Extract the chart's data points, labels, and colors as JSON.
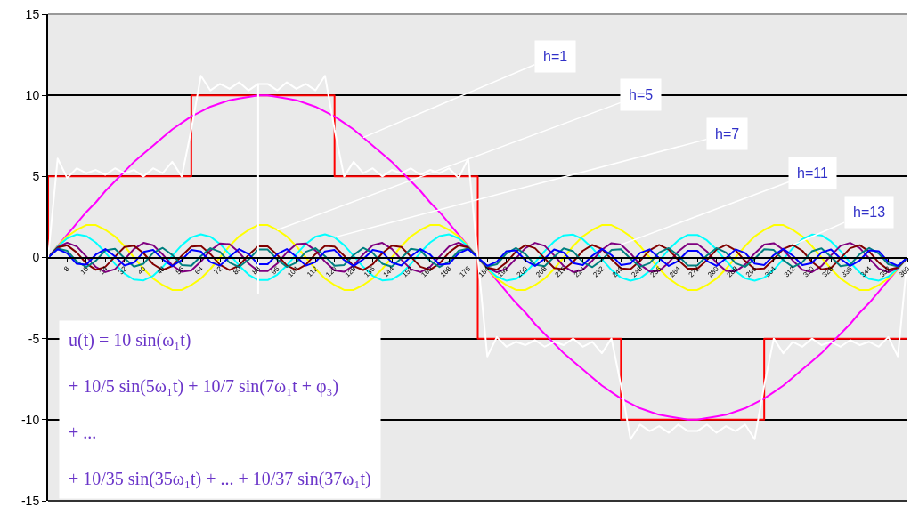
{
  "chart_data": {
    "type": "line",
    "x": [
      0,
      4,
      8,
      12,
      16,
      20,
      24,
      28,
      32,
      36,
      40,
      44,
      48,
      52,
      56,
      60,
      64,
      68,
      72,
      76,
      80,
      84,
      88,
      92,
      96,
      100,
      104,
      108,
      112,
      116,
      120,
      124,
      128,
      132,
      136,
      140,
      144,
      148,
      152,
      156,
      160,
      164,
      168,
      172,
      176,
      180,
      184,
      188,
      192,
      196,
      200,
      204,
      208,
      212,
      216,
      220,
      224,
      228,
      232,
      236,
      240,
      244,
      248,
      252,
      256,
      260,
      264,
      268,
      272,
      276,
      280,
      284,
      288,
      292,
      296,
      300,
      304,
      308,
      312,
      316,
      320,
      324,
      328,
      332,
      336,
      340,
      344,
      348,
      352,
      356,
      360
    ],
    "xlim": [
      0,
      360
    ],
    "xticks": [
      8,
      16,
      24,
      32,
      40,
      48,
      56,
      64,
      72,
      80,
      88,
      96,
      104,
      112,
      120,
      128,
      136,
      144,
      152,
      160,
      168,
      176,
      184,
      192,
      200,
      208,
      216,
      224,
      232,
      240,
      248,
      256,
      264,
      272,
      280,
      288,
      296,
      304,
      312,
      320,
      328,
      336,
      344,
      352,
      360
    ],
    "ylim": [
      -15,
      15
    ],
    "yticks": [
      -15,
      -10,
      -5,
      0,
      5,
      10,
      15
    ],
    "grid": "y",
    "marker": "none",
    "line_style": "solid",
    "series": [
      {
        "color": "#ff0000",
        "x": [
          0,
          0,
          60,
          60,
          120,
          120,
          180,
          180,
          240,
          240,
          300,
          300,
          360,
          360
        ],
        "values": [
          0,
          5,
          5,
          10,
          10,
          5,
          5,
          -5,
          -5,
          -10,
          -10,
          -5,
          -5,
          0
        ]
      },
      {
        "color": "#ff00ff",
        "values": [
          0,
          0.7,
          1.4,
          2.1,
          2.8,
          3.4,
          4.1,
          4.7,
          5.3,
          5.9,
          6.4,
          6.9,
          7.4,
          7.9,
          8.3,
          8.7,
          9.0,
          9.3,
          9.5,
          9.7,
          9.8,
          9.9,
          10.0,
          10.0,
          9.9,
          9.8,
          9.7,
          9.5,
          9.3,
          9.0,
          8.7,
          8.3,
          7.9,
          7.4,
          6.9,
          6.4,
          5.9,
          5.3,
          4.7,
          4.1,
          3.4,
          2.8,
          2.1,
          1.4,
          0.7,
          0,
          -0.7,
          -1.4,
          -2.1,
          -2.8,
          -3.4,
          -4.1,
          -4.7,
          -5.3,
          -5.9,
          -6.4,
          -6.9,
          -7.4,
          -7.9,
          -8.3,
          -8.7,
          -9.0,
          -9.3,
          -9.5,
          -9.7,
          -9.8,
          -9.9,
          -10.0,
          -10.0,
          -9.9,
          -9.8,
          -9.7,
          -9.5,
          -9.3,
          -9.0,
          -8.7,
          -8.3,
          -7.9,
          -7.4,
          -6.9,
          -6.4,
          -5.9,
          -5.3,
          -4.7,
          -4.1,
          -3.4,
          -2.8,
          -2.1,
          -1.4,
          -0.7,
          0
        ]
      },
      {
        "color": "#ffff00",
        "values": [
          0,
          0.7,
          1.3,
          1.7,
          2.0,
          2.0,
          1.7,
          1.3,
          0.7,
          0,
          -0.7,
          -1.3,
          -1.7,
          -2.0,
          -2.0,
          -1.7,
          -1.3,
          -0.7,
          0,
          0.7,
          1.3,
          1.7,
          2.0,
          2.0,
          1.7,
          1.3,
          0.7,
          0,
          -0.7,
          -1.3,
          -1.7,
          -2.0,
          -2.0,
          -1.7,
          -1.3,
          -0.7,
          0,
          0.7,
          1.3,
          1.7,
          2.0,
          2.0,
          1.7,
          1.3,
          0.7,
          0,
          -0.7,
          -1.3,
          -1.7,
          -2.0,
          -2.0,
          -1.7,
          -1.3,
          -0.7,
          0,
          0.7,
          1.3,
          1.7,
          2.0,
          2.0,
          1.7,
          1.3,
          0.7,
          0,
          -0.7,
          -1.3,
          -1.7,
          -2.0,
          -2.0,
          -1.7,
          -1.3,
          -0.7,
          0,
          0.7,
          1.3,
          1.7,
          2.0,
          2.0,
          1.7,
          1.3,
          0.7,
          0,
          -0.7,
          -1.3,
          -1.7,
          -2.0,
          -2.0,
          -1.7,
          -1.3,
          -0.7,
          0
        ]
      },
      {
        "color": "#00ffff",
        "values": [
          0,
          0.67,
          1.18,
          1.42,
          1.32,
          0.92,
          0.3,
          -0.39,
          -0.99,
          -1.36,
          -1.41,
          -1.13,
          -0.58,
          0.1,
          0.76,
          1.24,
          1.43,
          1.28,
          0.84,
          0.2,
          -0.49,
          -1.06,
          -1.39,
          -1.39,
          -1.06,
          -0.49,
          0.2,
          0.84,
          1.28,
          1.43,
          1.24,
          0.76,
          0.1,
          -0.58,
          -1.13,
          -1.41,
          -1.36,
          -0.99,
          -0.39,
          0.3,
          0.92,
          1.32,
          1.42,
          1.18,
          0.67,
          0,
          -0.67,
          -1.18,
          -1.42,
          -1.32,
          -0.92,
          -0.3,
          0.39,
          0.99,
          1.36,
          1.41,
          1.13,
          0.58,
          -0.1,
          -0.76,
          -1.24,
          -1.43,
          -1.28,
          -0.84,
          -0.2,
          0.49,
          1.06,
          1.39,
          1.39,
          1.06,
          0.49,
          -0.2,
          -0.84,
          -1.28,
          -1.43,
          -1.24,
          -0.76,
          -0.1,
          0.58,
          1.13,
          1.41,
          1.36,
          0.99,
          0.39,
          -0.3,
          -0.92,
          -1.32,
          -1.42,
          -1.18,
          -0.67,
          0
        ]
      },
      {
        "color": "#800080",
        "values": [
          0,
          0.63,
          0.91,
          0.68,
          0.06,
          -0.58,
          -0.9,
          -0.72,
          -0.13,
          0.53,
          0.9,
          0.75,
          0.19,
          -0.48,
          -0.88,
          -0.79,
          -0.25,
          0.43,
          0.86,
          0.82,
          0.31,
          -0.37,
          -0.84,
          -0.84,
          -0.37,
          0.31,
          0.82,
          0.86,
          0.43,
          -0.25,
          -0.79,
          -0.88,
          -0.48,
          0.19,
          0.75,
          0.9,
          0.53,
          -0.13,
          -0.72,
          -0.9,
          -0.58,
          0.06,
          0.68,
          0.91,
          0.63,
          0,
          -0.63,
          -0.91,
          -0.68,
          -0.06,
          0.58,
          0.9,
          0.72,
          0.13,
          -0.53,
          -0.9,
          -0.75,
          -0.19,
          0.48,
          0.88,
          0.79,
          0.25,
          -0.43,
          -0.86,
          -0.82,
          -0.31,
          0.37,
          0.84,
          0.84,
          0.37,
          -0.31,
          -0.82,
          -0.86,
          -0.43,
          0.25,
          0.79,
          0.88,
          0.48,
          -0.19,
          -0.75,
          -0.9,
          -0.53,
          0.13,
          0.72,
          0.9,
          0.58,
          -0.06,
          -0.68,
          -0.91,
          -0.63,
          0
        ]
      },
      {
        "color": "#800000",
        "values": [
          0,
          0.61,
          0.75,
          0.31,
          -0.36,
          -0.76,
          -0.57,
          0.05,
          0.64,
          0.73,
          0.26,
          -0.41,
          -0.77,
          -0.53,
          0.11,
          0.67,
          0.71,
          0.21,
          -0.45,
          -0.77,
          -0.49,
          0.16,
          0.69,
          0.69,
          0.16,
          -0.49,
          -0.77,
          -0.45,
          0.21,
          0.71,
          0.67,
          0.11,
          -0.53,
          -0.77,
          -0.41,
          0.26,
          0.73,
          0.64,
          0.05,
          -0.57,
          -0.76,
          -0.36,
          0.31,
          0.75,
          0.61,
          0,
          -0.61,
          -0.75,
          -0.31,
          0.36,
          0.76,
          0.57,
          -0.05,
          -0.64,
          -0.73,
          -0.26,
          0.41,
          0.77,
          0.53,
          -0.11,
          -0.67,
          -0.71,
          -0.21,
          0.45,
          0.77,
          0.49,
          -0.16,
          -0.69,
          -0.69,
          -0.16,
          0.49,
          0.77,
          0.45,
          -0.21,
          -0.71,
          -0.67,
          -0.11,
          0.53,
          0.77,
          0.41,
          -0.26,
          -0.73,
          -0.64,
          -0.05,
          0.57,
          0.76,
          0.36,
          -0.31,
          -0.75,
          -0.61,
          0
        ]
      },
      {
        "color": "#008080",
        "values": [
          0,
          0.55,
          0.41,
          -0.24,
          -0.59,
          -0.2,
          0.44,
          0.53,
          -0.04,
          -0.56,
          -0.38,
          0.28,
          0.59,
          0.16,
          -0.46,
          -0.51,
          0.08,
          0.57,
          0.35,
          -0.31,
          -0.58,
          -0.12,
          0.49,
          0.49,
          -0.12,
          -0.58,
          -0.31,
          0.35,
          0.57,
          0.08,
          -0.51,
          -0.46,
          0.16,
          0.59,
          0.28,
          -0.38,
          -0.56,
          -0.04,
          0.53,
          0.44,
          -0.2,
          -0.59,
          -0.24,
          0.41,
          0.55,
          0,
          -0.55,
          -0.41,
          0.24,
          0.59,
          0.2,
          -0.44,
          -0.53,
          0.04,
          0.56,
          0.38,
          -0.28,
          -0.59,
          -0.16,
          0.46,
          0.51,
          -0.08,
          -0.57,
          -0.35,
          0.31,
          0.58,
          0.12,
          -0.49,
          -0.49,
          0.12,
          0.58,
          0.31,
          -0.35,
          -0.57,
          -0.08,
          0.51,
          0.46,
          -0.16,
          -0.59,
          -0.28,
          0.38,
          0.56,
          0.04,
          -0.53,
          -0.44,
          0.2,
          0.59,
          0.24,
          -0.41,
          -0.55,
          0
        ]
      },
      {
        "color": "#0000ff",
        "values": [
          0,
          0.51,
          0.25,
          -0.39,
          -0.44,
          0.18,
          0.52,
          0.07,
          -0.49,
          -0.31,
          0.34,
          0.47,
          -0.11,
          -0.53,
          -0.15,
          0.46,
          0.37,
          -0.28,
          -0.5,
          0.04,
          0.52,
          0.21,
          -0.41,
          -0.41,
          0.21,
          0.52,
          0.04,
          -0.5,
          -0.28,
          0.37,
          0.46,
          -0.15,
          -0.53,
          -0.11,
          0.47,
          0.34,
          -0.31,
          -0.49,
          0.07,
          0.52,
          0.18,
          -0.44,
          -0.39,
          0.25,
          0.51,
          0,
          -0.51,
          -0.25,
          0.39,
          0.44,
          -0.18,
          -0.52,
          -0.07,
          0.49,
          0.31,
          -0.34,
          -0.47,
          0.11,
          0.53,
          0.15,
          -0.46,
          -0.37,
          0.28,
          0.5,
          -0.04,
          -0.52,
          -0.21,
          0.41,
          0.41,
          -0.21,
          -0.52,
          -0.04,
          0.5,
          0.28,
          -0.37,
          -0.46,
          0.15,
          0.53,
          0.11,
          -0.47,
          -0.34,
          0.31,
          0.49,
          -0.07,
          -0.52,
          -0.18,
          0.44,
          0.39,
          -0.25,
          -0.51,
          0
        ]
      },
      {
        "color": "#ffffff",
        "x": [
          0,
          4,
          8,
          12,
          16,
          20,
          24,
          28,
          32,
          36,
          40,
          44,
          48,
          52,
          56,
          60,
          64,
          68,
          72,
          76,
          80,
          84,
          88,
          88,
          88,
          92,
          96,
          100,
          104,
          108,
          112,
          116,
          120,
          124,
          128,
          132,
          136,
          140,
          144,
          148,
          152,
          156,
          160,
          164,
          168,
          172,
          176,
          180,
          184,
          188,
          192,
          196,
          200,
          204,
          208,
          212,
          216,
          220,
          224,
          228,
          232,
          236,
          240,
          244,
          248,
          252,
          256,
          260,
          264,
          268,
          272,
          276,
          280,
          284,
          288,
          292,
          296,
          300,
          304,
          308,
          312,
          316,
          320,
          324,
          328,
          332,
          336,
          340,
          344,
          348,
          352,
          356,
          360
        ],
        "values": [
          0,
          6.1,
          4.9,
          5.5,
          5.2,
          5.4,
          5.1,
          5.5,
          5.2,
          5.4,
          5.0,
          5.5,
          5.2,
          5.9,
          5.0,
          7.9,
          11.2,
          10.3,
          10.7,
          10.4,
          10.8,
          10.3,
          10.7,
          -2.2,
          10.7,
          10.7,
          10.3,
          10.8,
          10.4,
          10.7,
          10.3,
          11.2,
          7.9,
          5.0,
          5.9,
          5.2,
          5.5,
          5.0,
          5.4,
          5.2,
          5.5,
          5.1,
          5.4,
          5.2,
          5.5,
          4.9,
          6.1,
          0,
          -6.1,
          -4.9,
          -5.5,
          -5.2,
          -5.4,
          -5.1,
          -5.5,
          -5.2,
          -5.4,
          -5.0,
          -5.5,
          -5.2,
          -5.9,
          -5.0,
          -7.9,
          -11.2,
          -10.3,
          -10.7,
          -10.4,
          -10.8,
          -10.3,
          -10.7,
          -10.7,
          -10.3,
          -10.8,
          -10.4,
          -10.7,
          -10.3,
          -11.2,
          -7.9,
          -5.0,
          -5.9,
          -5.2,
          -5.5,
          -5.0,
          -5.4,
          -5.2,
          -5.5,
          -5.1,
          -5.4,
          -5.2,
          -5.5,
          -4.9,
          -6.1,
          0
        ]
      }
    ],
    "annotations": [
      {
        "text": "h=1",
        "x": 132,
        "y": 7.4
      },
      {
        "text": "h=5",
        "x": 96,
        "y": 1.7
      },
      {
        "text": "h=7",
        "x": 120,
        "y": 1.24
      },
      {
        "text": "h=11",
        "x": 240,
        "y": 0.79
      },
      {
        "text": "h=13",
        "x": 312,
        "y": 0.77
      },
      "u(t) = 10 sin(ω₁t)\n+ 10/5 sin(5ω₁t) + 10/7 sin(7ω₁t + φ₃)\n+ ...\n+ 10/35 sin(35ω₁t) + ... + 10/37 sin(37ω₁t)"
    ]
  }
}
